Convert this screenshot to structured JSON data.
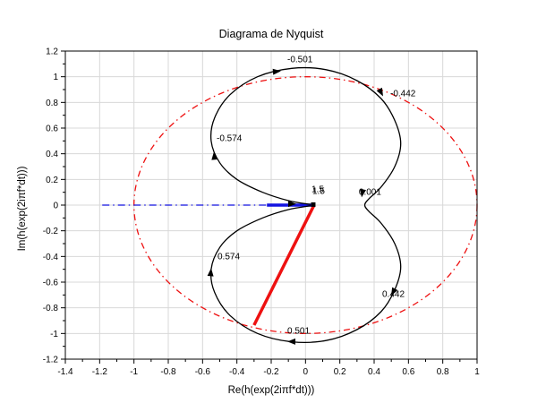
{
  "window": {
    "background": "#ffffff"
  },
  "chart_data": {
    "type": "line",
    "title": "Diagrama de Nyquist",
    "xlabel": "Re(h(exp(2iπf*dt)))",
    "ylabel": "Im(h(exp(2iπf*dt)))",
    "xlim": [
      -1.4,
      1
    ],
    "ylim": [
      -1.2,
      1.2
    ],
    "x_ticks": [
      -1.4,
      -1.2,
      -1,
      -0.8,
      -0.6,
      -0.4,
      -0.2,
      0,
      0.2,
      0.4,
      0.6,
      0.8,
      1
    ],
    "x_tick_labels": [
      "-1.4",
      "-1.2",
      "-1",
      "-0.8",
      "-0.6",
      "-0.4",
      "-0.2",
      "0",
      "0.2",
      "0.4",
      "0.6",
      "0.8",
      "1"
    ],
    "y_ticks": [
      1.2,
      1,
      0.8,
      0.6,
      0.4,
      0.2,
      0,
      -0.2,
      -0.4,
      -0.6,
      -0.8,
      -1,
      -1.2
    ],
    "y_tick_labels": [
      "1.2",
      "1",
      "0.8",
      "0.6",
      "0.4",
      "0.2",
      "0",
      "-0.2",
      "-0.4",
      "-0.6",
      "-0.8",
      "-1",
      "-1.2"
    ],
    "grid": true,
    "legend": "none",
    "colors": {
      "curve": "#000000",
      "unit_circle": "#ee1111",
      "axis_line": "#1212e0",
      "radius_line": "#ee1111",
      "grid": "#d8d8d8",
      "text": "#000000"
    },
    "series": [
      {
        "name": "nyquist-curve",
        "color": "#000000",
        "style": "solid",
        "points": [
          [
            0.03,
            0.005
          ],
          [
            -0.1,
            0.035
          ],
          [
            -0.25,
            0.1
          ],
          [
            -0.4,
            0.2
          ],
          [
            -0.5,
            0.33
          ],
          [
            -0.55,
            0.5
          ],
          [
            -0.53,
            0.68
          ],
          [
            -0.44,
            0.86
          ],
          [
            -0.28,
            1.0
          ],
          [
            -0.08,
            1.065
          ],
          [
            0.12,
            1.055
          ],
          [
            0.3,
            0.97
          ],
          [
            0.44,
            0.83
          ],
          [
            0.52,
            0.66
          ],
          [
            0.555,
            0.48
          ],
          [
            0.52,
            0.3
          ],
          [
            0.44,
            0.14
          ],
          [
            0.37,
            0.05
          ],
          [
            0.345,
            0.0
          ],
          [
            0.37,
            -0.05
          ],
          [
            0.44,
            -0.14
          ],
          [
            0.52,
            -0.3
          ],
          [
            0.555,
            -0.48
          ],
          [
            0.52,
            -0.66
          ],
          [
            0.44,
            -0.83
          ],
          [
            0.3,
            -0.97
          ],
          [
            0.12,
            -1.055
          ],
          [
            -0.08,
            -1.065
          ],
          [
            -0.28,
            -1.0
          ],
          [
            -0.44,
            -0.86
          ],
          [
            -0.53,
            -0.68
          ],
          [
            -0.55,
            -0.5
          ],
          [
            -0.5,
            -0.33
          ],
          [
            -0.4,
            -0.2
          ],
          [
            -0.25,
            -0.1
          ],
          [
            -0.1,
            -0.035
          ],
          [
            0.03,
            -0.005
          ]
        ]
      }
    ],
    "unit_circle": {
      "center": [
        0,
        0
      ],
      "rx": 1,
      "ry": 1,
      "style": "dash-dot"
    },
    "aux_lines": [
      {
        "name": "real-axis-line",
        "color": "#1212e0",
        "width": 1.2,
        "dash": "8 4 1.5 4",
        "points": [
          [
            -1.185,
            0
          ],
          [
            -0.225,
            0
          ]
        ]
      },
      {
        "name": "direction-arrow-segment",
        "color": "#1212e0",
        "width": 3.5,
        "dash": "",
        "points": [
          [
            -0.225,
            0
          ],
          [
            0.052,
            0
          ]
        ]
      },
      {
        "name": "radius-line",
        "color": "#ee1111",
        "width": 3.5,
        "dash": "",
        "points": [
          [
            0.05,
            0
          ],
          [
            -0.3,
            -0.935
          ]
        ]
      }
    ],
    "freq_labels": [
      {
        "text": "-0.501",
        "at": [
          -0.106,
          1.113
        ]
      },
      {
        "text": "-0.442",
        "at": [
          0.494,
          0.848
        ]
      },
      {
        "text": "-0.574",
        "at": [
          -0.518,
          0.5
        ]
      },
      {
        "text": "0.574",
        "at": [
          -0.513,
          -0.421
        ]
      },
      {
        "text": "0.442",
        "at": [
          0.447,
          -0.714
        ]
      },
      {
        "text": "0.501",
        "at": [
          -0.106,
          -1.0
        ]
      },
      {
        "text": "0.001",
        "at": [
          0.311,
          0.081
        ]
      },
      {
        "text": "1.5",
        "at": [
          0.035,
          0.102
        ]
      },
      {
        "text": "1.5",
        "at": [
          0.04,
          0.088
        ]
      }
    ],
    "arrows": [
      {
        "at": [
          -0.534,
          0.416
        ],
        "angle": -95
      },
      {
        "at": [
          -0.143,
          1.044
        ],
        "angle": -5
      },
      {
        "at": [
          0.452,
          0.848
        ],
        "angle": 62
      },
      {
        "at": [
          0.327,
          0.06
        ],
        "angle": 100
      },
      {
        "at": [
          0.499,
          -0.707
        ],
        "angle": 118
      },
      {
        "at": [
          -0.106,
          -1.063
        ],
        "angle": 180
      },
      {
        "at": [
          -0.55,
          -0.491
        ],
        "angle": -85
      },
      {
        "at": [
          -0.054,
          0.01
        ],
        "angle": 0
      }
    ],
    "markers": [
      {
        "shape": "square",
        "at": [
          0.045,
          0.004
        ],
        "size": 5,
        "color": "#000000"
      }
    ]
  }
}
